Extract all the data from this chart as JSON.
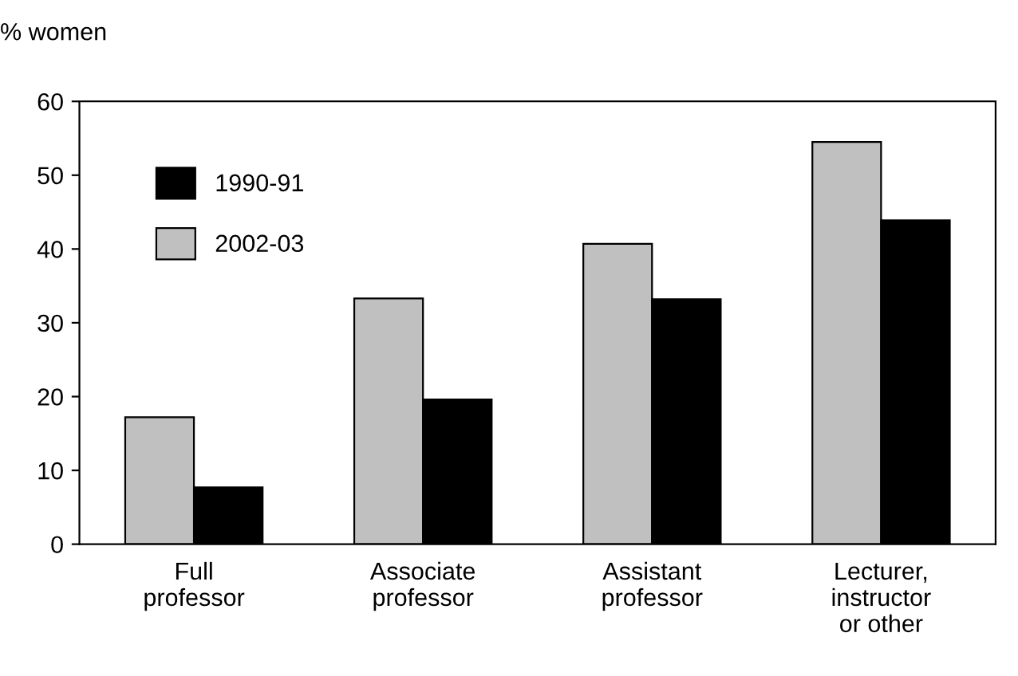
{
  "chart_data": {
    "type": "bar",
    "ylabel": "% women",
    "categories": [
      "Full\nprofessor",
      "Associate\nprofessor",
      "Assistant\nprofessor",
      "Lecturer,\ninstructor\nor other"
    ],
    "series": [
      {
        "name": "2002-03",
        "color": "#c0c0c0",
        "values": [
          17.2,
          33.3,
          40.7,
          54.5
        ]
      },
      {
        "name": "1990-91",
        "color": "#000000",
        "values": [
          7.7,
          19.6,
          33.2,
          43.9
        ]
      }
    ],
    "ylim": [
      0,
      60
    ],
    "yticks": [
      0,
      10,
      20,
      30,
      40,
      50,
      60
    ],
    "grid": false,
    "legend": "top left"
  }
}
